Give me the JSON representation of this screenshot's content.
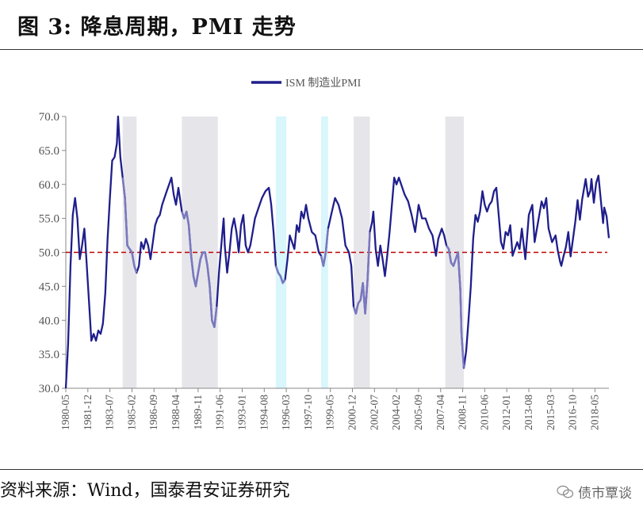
{
  "figure": {
    "title": "图 3: 降息周期，PMI 走势",
    "source": "资料来源：Wind，国泰君安证券研究",
    "watermark": "债市覃谈"
  },
  "chart_data": {
    "type": "line",
    "legend": {
      "label": "ISM 制造业PMI",
      "placement": "top-center"
    },
    "ylim": [
      30.0,
      70.0
    ],
    "y_ticks": [
      "70.0",
      "65.0",
      "60.0",
      "55.0",
      "50.0",
      "45.0",
      "40.0",
      "35.0",
      "30.0"
    ],
    "x_range": [
      "1980-05",
      "2019-05"
    ],
    "x_ticks": [
      "1980-05",
      "1981-12",
      "1983-07",
      "1985-02",
      "1986-09",
      "1988-04",
      "1989-11",
      "1991-06",
      "1993-01",
      "1994-08",
      "1996-03",
      "1997-10",
      "1999-05",
      "2000-12",
      "2002-07",
      "2004-02",
      "2005-09",
      "2007-04",
      "2008-11",
      "2010-06",
      "2012-01",
      "2013-08",
      "2015-03",
      "2016-10",
      "2018-05"
    ],
    "reference_line": {
      "value": 50,
      "style": "dashed",
      "color": "#c00000"
    },
    "colors": {
      "series": "#1f1e8c",
      "series_light": "#7a78bf",
      "shade_gray": "#e6e6ea",
      "shade_blue": "#d8f6fb"
    },
    "rate_cut_periods": [
      {
        "start": "1984-06",
        "end": "1985-06",
        "color": "gray"
      },
      {
        "start": "1988-09",
        "end": "1991-04",
        "color": "gray"
      },
      {
        "start": "1995-06",
        "end": "1996-03",
        "color": "blue"
      },
      {
        "start": "1998-09",
        "end": "1999-03",
        "color": "blue"
      },
      {
        "start": "2001-01",
        "end": "2002-03",
        "color": "gray"
      },
      {
        "start": "2007-08",
        "end": "2008-12",
        "color": "gray"
      }
    ],
    "series": [
      {
        "name": "ISM 制造业PMI",
        "points": [
          [
            "1980-05",
            30.0
          ],
          [
            "1980-07",
            36.5
          ],
          [
            "1980-09",
            48.0
          ],
          [
            "1980-11",
            55.5
          ],
          [
            "1981-01",
            58.0
          ],
          [
            "1981-03",
            55.0
          ],
          [
            "1981-05",
            49.0
          ],
          [
            "1981-07",
            51.0
          ],
          [
            "1981-09",
            53.5
          ],
          [
            "1981-10",
            51.0
          ],
          [
            "1981-12",
            45.5
          ],
          [
            "1982-02",
            40.0
          ],
          [
            "1982-03",
            37.0
          ],
          [
            "1982-05",
            38.0
          ],
          [
            "1982-07",
            37.0
          ],
          [
            "1982-09",
            38.5
          ],
          [
            "1982-11",
            38.0
          ],
          [
            "1983-01",
            39.5
          ],
          [
            "1983-03",
            44.0
          ],
          [
            "1983-05",
            52.0
          ],
          [
            "1983-07",
            58.0
          ],
          [
            "1983-09",
            63.5
          ],
          [
            "1983-11",
            64.0
          ],
          [
            "1984-01",
            66.0
          ],
          [
            "1984-02",
            70.0
          ],
          [
            "1984-04",
            64.0
          ],
          [
            "1984-06",
            61.0
          ],
          [
            "1984-08",
            58.0
          ],
          [
            "1984-10",
            51.0
          ],
          [
            "1984-12",
            50.5
          ],
          [
            "1985-02",
            50.0
          ],
          [
            "1985-04",
            48.0
          ],
          [
            "1985-06",
            47.0
          ],
          [
            "1985-08",
            48.0
          ],
          [
            "1985-10",
            51.5
          ],
          [
            "1985-12",
            50.5
          ],
          [
            "1986-02",
            52.0
          ],
          [
            "1986-04",
            51.0
          ],
          [
            "1986-06",
            49.0
          ],
          [
            "1986-08",
            51.5
          ],
          [
            "1986-10",
            54.0
          ],
          [
            "1986-12",
            55.0
          ],
          [
            "1987-02",
            55.5
          ],
          [
            "1987-04",
            57.0
          ],
          [
            "1987-06",
            58.0
          ],
          [
            "1987-08",
            59.0
          ],
          [
            "1987-10",
            60.0
          ],
          [
            "1987-12",
            61.0
          ],
          [
            "1988-02",
            58.5
          ],
          [
            "1988-04",
            57.0
          ],
          [
            "1988-06",
            59.5
          ],
          [
            "1988-09",
            56.0
          ],
          [
            "1988-11",
            55.0
          ],
          [
            "1989-01",
            56.0
          ],
          [
            "1989-03",
            54.0
          ],
          [
            "1989-05",
            49.5
          ],
          [
            "1989-07",
            46.5
          ],
          [
            "1989-09",
            45.0
          ],
          [
            "1989-11",
            47.0
          ],
          [
            "1990-01",
            49.0
          ],
          [
            "1990-03",
            50.0
          ],
          [
            "1990-05",
            50.0
          ],
          [
            "1990-07",
            48.0
          ],
          [
            "1990-09",
            45.0
          ],
          [
            "1990-11",
            40.0
          ],
          [
            "1991-01",
            39.0
          ],
          [
            "1991-03",
            42.0
          ],
          [
            "1991-05",
            47.0
          ],
          [
            "1991-07",
            51.0
          ],
          [
            "1991-09",
            55.0
          ],
          [
            "1991-10",
            51.0
          ],
          [
            "1991-12",
            47.0
          ],
          [
            "1992-02",
            50.0
          ],
          [
            "1992-04",
            53.5
          ],
          [
            "1992-06",
            55.0
          ],
          [
            "1992-08",
            53.0
          ],
          [
            "1992-10",
            50.0
          ],
          [
            "1992-12",
            54.0
          ],
          [
            "1993-02",
            55.5
          ],
          [
            "1993-04",
            51.0
          ],
          [
            "1993-06",
            50.0
          ],
          [
            "1993-08",
            51.0
          ],
          [
            "1993-10",
            53.0
          ],
          [
            "1993-12",
            55.0
          ],
          [
            "1994-02",
            56.0
          ],
          [
            "1994-04",
            57.0
          ],
          [
            "1994-06",
            58.0
          ],
          [
            "1994-09",
            59.0
          ],
          [
            "1994-12",
            59.5
          ],
          [
            "1995-02",
            57.0
          ],
          [
            "1995-04",
            53.0
          ],
          [
            "1995-06",
            48.0
          ],
          [
            "1995-08",
            47.0
          ],
          [
            "1995-10",
            46.5
          ],
          [
            "1995-12",
            45.5
          ],
          [
            "1996-02",
            46.0
          ],
          [
            "1996-04",
            49.0
          ],
          [
            "1996-06",
            52.5
          ],
          [
            "1996-08",
            51.5
          ],
          [
            "1996-10",
            50.5
          ],
          [
            "1996-12",
            54.0
          ],
          [
            "1997-02",
            53.0
          ],
          [
            "1997-04",
            56.0
          ],
          [
            "1997-06",
            55.0
          ],
          [
            "1997-08",
            57.0
          ],
          [
            "1997-10",
            55.0
          ],
          [
            "1998-01",
            53.0
          ],
          [
            "1998-04",
            52.5
          ],
          [
            "1998-07",
            50.0
          ],
          [
            "1998-09",
            49.5
          ],
          [
            "1998-11",
            48.0
          ],
          [
            "1999-01",
            50.0
          ],
          [
            "1999-03",
            53.5
          ],
          [
            "1999-05",
            55.0
          ],
          [
            "1999-07",
            56.5
          ],
          [
            "1999-09",
            58.0
          ],
          [
            "1999-12",
            57.0
          ],
          [
            "2000-03",
            55.0
          ],
          [
            "2000-06",
            51.0
          ],
          [
            "2000-09",
            50.0
          ],
          [
            "2000-11",
            48.0
          ],
          [
            "2001-01",
            42.0
          ],
          [
            "2001-03",
            41.0
          ],
          [
            "2001-05",
            42.5
          ],
          [
            "2001-07",
            43.0
          ],
          [
            "2001-09",
            45.5
          ],
          [
            "2001-11",
            41.0
          ],
          [
            "2002-01",
            46.0
          ],
          [
            "2002-03",
            53.0
          ],
          [
            "2002-05",
            54.5
          ],
          [
            "2002-06",
            56.0
          ],
          [
            "2002-08",
            50.5
          ],
          [
            "2002-10",
            48.0
          ],
          [
            "2002-12",
            51.0
          ],
          [
            "2003-02",
            49.0
          ],
          [
            "2003-04",
            46.5
          ],
          [
            "2003-06",
            49.5
          ],
          [
            "2003-08",
            53.0
          ],
          [
            "2003-10",
            57.0
          ],
          [
            "2003-12",
            61.0
          ],
          [
            "2004-02",
            60.0
          ],
          [
            "2004-04",
            61.0
          ],
          [
            "2004-06",
            60.0
          ],
          [
            "2004-09",
            58.5
          ],
          [
            "2004-12",
            57.5
          ],
          [
            "2005-03",
            55.5
          ],
          [
            "2005-06",
            53.0
          ],
          [
            "2005-09",
            57.0
          ],
          [
            "2005-12",
            55.0
          ],
          [
            "2006-03",
            55.0
          ],
          [
            "2006-06",
            53.5
          ],
          [
            "2006-09",
            52.5
          ],
          [
            "2006-12",
            49.5
          ],
          [
            "2007-02",
            52.0
          ],
          [
            "2007-05",
            53.5
          ],
          [
            "2007-07",
            52.5
          ],
          [
            "2007-09",
            51.0
          ],
          [
            "2007-11",
            50.5
          ],
          [
            "2008-01",
            48.5
          ],
          [
            "2008-03",
            48.0
          ],
          [
            "2008-05",
            49.0
          ],
          [
            "2008-07",
            50.0
          ],
          [
            "2008-09",
            44.5
          ],
          [
            "2008-10",
            38.0
          ],
          [
            "2008-12",
            33.0
          ],
          [
            "2009-02",
            35.5
          ],
          [
            "2009-04",
            40.0
          ],
          [
            "2009-06",
            45.0
          ],
          [
            "2009-08",
            52.0
          ],
          [
            "2009-10",
            55.5
          ],
          [
            "2009-12",
            54.5
          ],
          [
            "2010-02",
            56.0
          ],
          [
            "2010-04",
            59.0
          ],
          [
            "2010-06",
            57.0
          ],
          [
            "2010-08",
            56.0
          ],
          [
            "2010-10",
            57.0
          ],
          [
            "2010-12",
            57.5
          ],
          [
            "2011-02",
            59.0
          ],
          [
            "2011-04",
            59.5
          ],
          [
            "2011-06",
            55.5
          ],
          [
            "2011-08",
            51.5
          ],
          [
            "2011-10",
            50.5
          ],
          [
            "2011-12",
            53.0
          ],
          [
            "2012-02",
            52.5
          ],
          [
            "2012-04",
            54.0
          ],
          [
            "2012-06",
            49.5
          ],
          [
            "2012-08",
            50.5
          ],
          [
            "2012-10",
            51.5
          ],
          [
            "2012-12",
            50.5
          ],
          [
            "2013-02",
            53.5
          ],
          [
            "2013-05",
            49.0
          ],
          [
            "2013-08",
            55.5
          ],
          [
            "2013-11",
            57.0
          ],
          [
            "2014-01",
            51.5
          ],
          [
            "2014-04",
            54.5
          ],
          [
            "2014-07",
            57.5
          ],
          [
            "2014-09",
            56.5
          ],
          [
            "2014-11",
            58.0
          ],
          [
            "2015-01",
            53.5
          ],
          [
            "2015-04",
            51.5
          ],
          [
            "2015-07",
            52.5
          ],
          [
            "2015-09",
            50.2
          ],
          [
            "2015-11",
            48.6
          ],
          [
            "2015-12",
            48.0
          ],
          [
            "2016-02",
            49.5
          ],
          [
            "2016-04",
            50.8
          ],
          [
            "2016-06",
            53.0
          ],
          [
            "2016-08",
            49.4
          ],
          [
            "2016-10",
            51.9
          ],
          [
            "2016-12",
            54.5
          ],
          [
            "2017-02",
            57.7
          ],
          [
            "2017-04",
            54.8
          ],
          [
            "2017-06",
            57.8
          ],
          [
            "2017-09",
            60.8
          ],
          [
            "2017-11",
            58.2
          ],
          [
            "2018-01",
            59.1
          ],
          [
            "2018-02",
            60.8
          ],
          [
            "2018-04",
            57.3
          ],
          [
            "2018-06",
            60.2
          ],
          [
            "2018-08",
            61.3
          ],
          [
            "2018-10",
            57.7
          ],
          [
            "2018-12",
            54.3
          ],
          [
            "2019-01",
            56.6
          ],
          [
            "2019-03",
            55.3
          ],
          [
            "2019-05",
            52.1
          ]
        ]
      }
    ]
  }
}
